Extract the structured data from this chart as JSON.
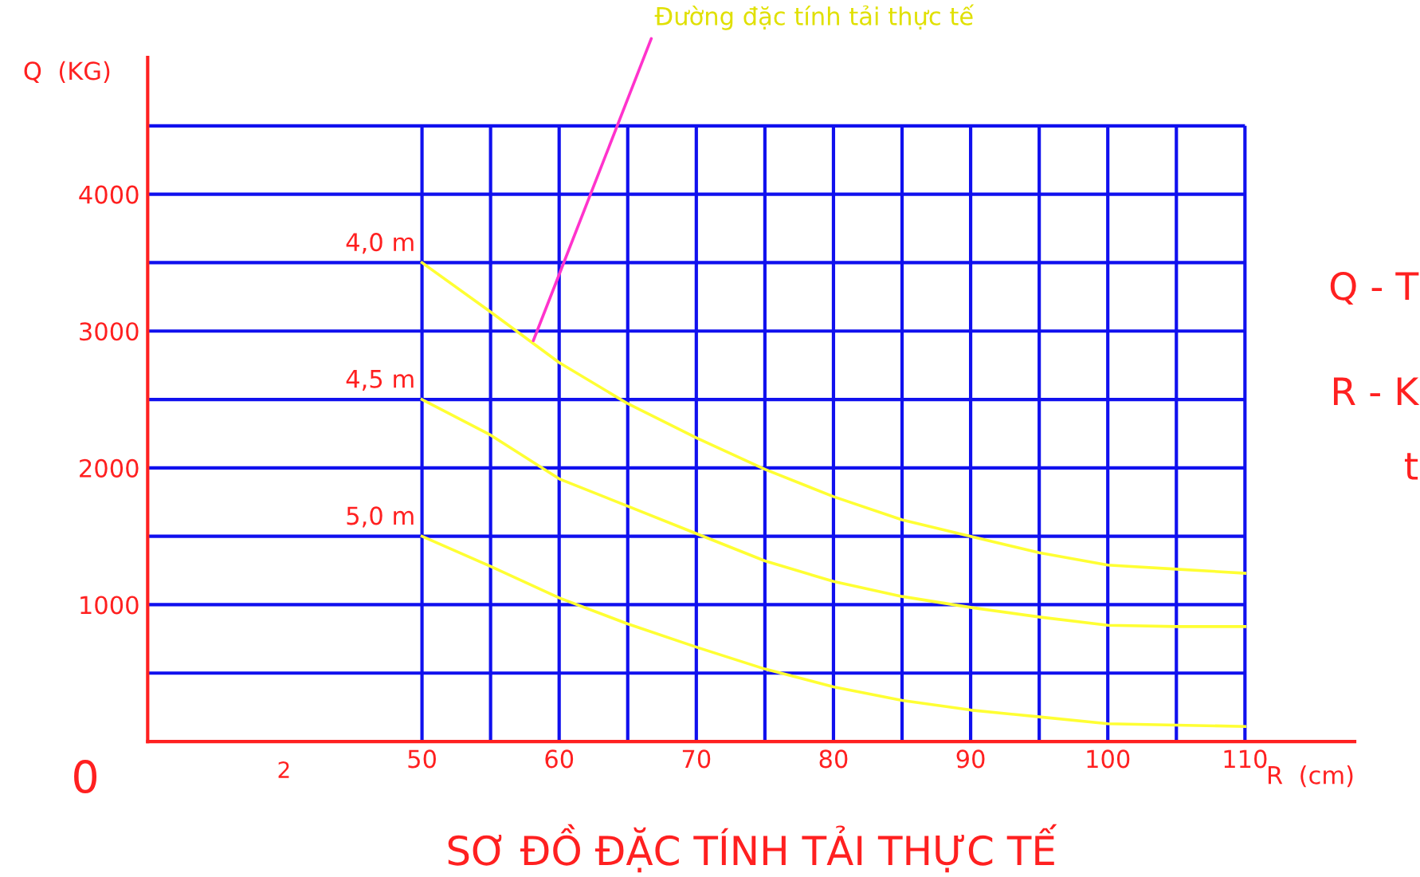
{
  "chart_data": {
    "type": "line",
    "title": "SƠ ĐỒ ĐẶC TÍNH TẢI THỰC TẾ",
    "xlabel": "R  (cm)",
    "ylabel": "Q  (KG)",
    "x": [
      50,
      55,
      60,
      65,
      70,
      75,
      80,
      85,
      90,
      95,
      100,
      105,
      110
    ],
    "series": [
      {
        "name": "4,0 m",
        "color": "#ffff33",
        "values": [
          3500,
          3140,
          2770,
          2470,
          2220,
          1990,
          1790,
          1620,
          1500,
          1380,
          1290,
          1260,
          1230
        ]
      },
      {
        "name": "4,5 m",
        "color": "#ffff33",
        "values": [
          2500,
          2240,
          1920,
          1720,
          1520,
          1320,
          1170,
          1060,
          980,
          910,
          850,
          840,
          840
        ]
      },
      {
        "name": "5,0 m",
        "color": "#ffff33",
        "values": [
          1500,
          1280,
          1050,
          860,
          690,
          530,
          400,
          300,
          230,
          180,
          130,
          120,
          110
        ]
      }
    ],
    "xlim": [
      30,
      118
    ],
    "ylim": [
      0,
      5000
    ],
    "xticks": [
      50,
      {
        "value": 55,
        "label": null
      },
      60,
      {
        "value": 65,
        "label": null
      },
      70,
      {
        "value": 75,
        "label": null
      },
      80,
      {
        "value": 85,
        "label": null
      },
      90,
      {
        "value": 95,
        "label": null
      },
      100,
      {
        "value": 105,
        "label": null
      },
      110
    ],
    "yticks": [
      {
        "value": 500,
        "label": null
      },
      1000,
      {
        "value": 1500,
        "label": null
      },
      2000,
      {
        "value": 2500,
        "label": null
      },
      3000,
      {
        "value": 3500,
        "label": null
      },
      4000,
      {
        "value": 4500,
        "label": null
      }
    ],
    "grid": true,
    "legend": false,
    "marker": "none",
    "line_style": "solid",
    "annotations": [
      {
        "text": "Đường đặc tính tải thực tế",
        "x": 58,
        "y": 2900
      },
      "0",
      "2",
      "Q - T",
      "R - K",
      "t"
    ]
  }
}
